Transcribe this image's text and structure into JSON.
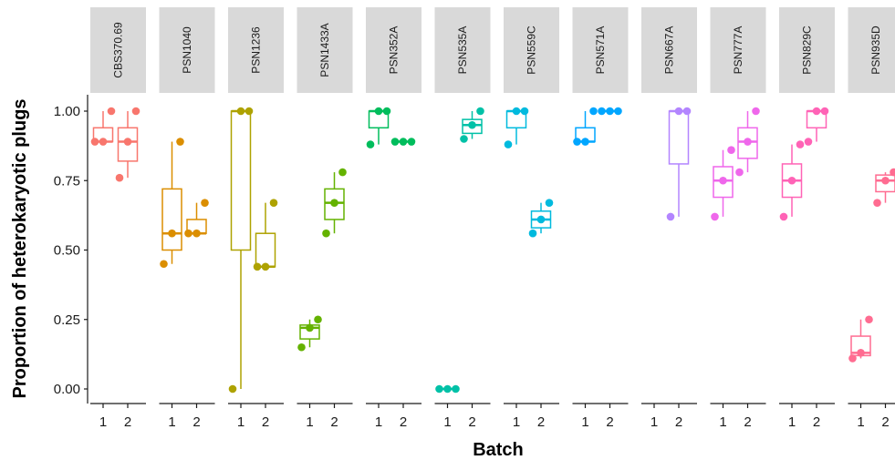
{
  "chart_data": {
    "type": "boxplot",
    "xlabel": "Batch",
    "ylabel": "Proportion of heterokaryotic plugs",
    "ylim": [
      0,
      1
    ],
    "yticks": [
      "0.00",
      "0.25",
      "0.50",
      "0.75",
      "1.00"
    ],
    "batches": [
      "1",
      "2"
    ],
    "facets": [
      {
        "name": "CBS370.69",
        "color": "#F8766D",
        "groups": [
          {
            "batch": "1",
            "min": 0.89,
            "q1": 0.89,
            "median": 0.89,
            "q3": 0.94,
            "max": 1.0,
            "points": [
              0.89,
              0.89,
              1.0
            ]
          },
          {
            "batch": "2",
            "min": 0.76,
            "q1": 0.82,
            "median": 0.89,
            "q3": 0.94,
            "max": 1.0,
            "points": [
              0.76,
              0.89,
              1.0
            ]
          }
        ]
      },
      {
        "name": "PSN1040",
        "color": "#DB8E00",
        "groups": [
          {
            "batch": "1",
            "min": 0.45,
            "q1": 0.5,
            "median": 0.56,
            "q3": 0.72,
            "max": 0.89,
            "points": [
              0.45,
              0.56,
              0.89
            ]
          },
          {
            "batch": "2",
            "min": 0.56,
            "q1": 0.56,
            "median": 0.56,
            "q3": 0.61,
            "max": 0.67,
            "points": [
              0.56,
              0.56,
              0.67
            ]
          }
        ]
      },
      {
        "name": "PSN1236",
        "color": "#AEA200",
        "groups": [
          {
            "batch": "1",
            "min": 0.0,
            "q1": 0.5,
            "median": 1.0,
            "q3": 1.0,
            "max": 1.0,
            "points": [
              0.0,
              1.0,
              1.0
            ]
          },
          {
            "batch": "2",
            "min": 0.44,
            "q1": 0.44,
            "median": 0.44,
            "q3": 0.56,
            "max": 0.67,
            "points": [
              0.44,
              0.44,
              0.67
            ]
          }
        ]
      },
      {
        "name": "PSN1433A",
        "color": "#64B200",
        "groups": [
          {
            "batch": "1",
            "min": 0.15,
            "q1": 0.18,
            "median": 0.22,
            "q3": 0.23,
            "max": 0.25,
            "points": [
              0.15,
              0.22,
              0.25
            ]
          },
          {
            "batch": "2",
            "min": 0.56,
            "q1": 0.61,
            "median": 0.67,
            "q3": 0.72,
            "max": 0.78,
            "points": [
              0.56,
              0.67,
              0.78
            ]
          }
        ]
      },
      {
        "name": "PSN352A",
        "color": "#00BD5C",
        "groups": [
          {
            "batch": "1",
            "min": 0.88,
            "q1": 0.94,
            "median": 1.0,
            "q3": 1.0,
            "max": 1.0,
            "points": [
              0.88,
              1.0,
              1.0
            ]
          },
          {
            "batch": "2",
            "min": 0.89,
            "q1": 0.89,
            "median": 0.89,
            "q3": 0.89,
            "max": 0.89,
            "points": [
              0.89,
              0.89,
              0.89
            ]
          }
        ]
      },
      {
        "name": "PSN535A",
        "color": "#00C1A7",
        "groups": [
          {
            "batch": "1",
            "min": 0.0,
            "q1": 0.0,
            "median": 0.0,
            "q3": 0.0,
            "max": 0.0,
            "points": [
              0.0,
              0.0,
              0.0
            ]
          },
          {
            "batch": "2",
            "min": 0.9,
            "q1": 0.92,
            "median": 0.95,
            "q3": 0.97,
            "max": 1.0,
            "points": [
              0.9,
              0.95,
              1.0
            ]
          }
        ]
      },
      {
        "name": "PSN559C",
        "color": "#00BADE",
        "groups": [
          {
            "batch": "1",
            "min": 0.88,
            "q1": 0.94,
            "median": 1.0,
            "q3": 1.0,
            "max": 1.0,
            "points": [
              0.88,
              1.0,
              1.0
            ]
          },
          {
            "batch": "2",
            "min": 0.56,
            "q1": 0.58,
            "median": 0.61,
            "q3": 0.64,
            "max": 0.67,
            "points": [
              0.56,
              0.61,
              0.67
            ]
          }
        ]
      },
      {
        "name": "PSN571A",
        "color": "#00A6FF",
        "groups": [
          {
            "batch": "1",
            "min": 0.89,
            "q1": 0.89,
            "median": 0.89,
            "q3": 0.94,
            "max": 1.0,
            "points": [
              0.89,
              0.89,
              1.0
            ]
          },
          {
            "batch": "2",
            "min": 1.0,
            "q1": 1.0,
            "median": 1.0,
            "q3": 1.0,
            "max": 1.0,
            "points": [
              1.0,
              1.0,
              1.0
            ]
          }
        ]
      },
      {
        "name": "PSN667A",
        "color": "#B385FF",
        "groups": [
          {
            "batch": "2",
            "min": 0.62,
            "q1": 0.81,
            "median": 1.0,
            "q3": 1.0,
            "max": 1.0,
            "points": [
              0.62,
              1.0,
              1.0
            ]
          }
        ]
      },
      {
        "name": "PSN777A",
        "color": "#EF67EB",
        "groups": [
          {
            "batch": "1",
            "min": 0.62,
            "q1": 0.69,
            "median": 0.75,
            "q3": 0.8,
            "max": 0.86,
            "points": [
              0.62,
              0.75,
              0.86
            ]
          },
          {
            "batch": "2",
            "min": 0.78,
            "q1": 0.83,
            "median": 0.89,
            "q3": 0.94,
            "max": 1.0,
            "points": [
              0.78,
              0.89,
              1.0
            ]
          }
        ]
      },
      {
        "name": "PSN829C",
        "color": "#FF63B6",
        "groups": [
          {
            "batch": "1",
            "min": 0.62,
            "q1": 0.69,
            "median": 0.75,
            "q3": 0.81,
            "max": 0.88,
            "points": [
              0.62,
              0.75,
              0.88
            ]
          },
          {
            "batch": "2",
            "min": 0.89,
            "q1": 0.94,
            "median": 1.0,
            "q3": 1.0,
            "max": 1.0,
            "points": [
              0.89,
              1.0,
              1.0
            ]
          }
        ]
      },
      {
        "name": "PSN935D",
        "color": "#FF6C91",
        "groups": [
          {
            "batch": "1",
            "min": 0.11,
            "q1": 0.12,
            "median": 0.13,
            "q3": 0.19,
            "max": 0.25,
            "points": [
              0.11,
              0.13,
              0.25
            ]
          },
          {
            "batch": "2",
            "min": 0.67,
            "q1": 0.71,
            "median": 0.75,
            "q3": 0.77,
            "max": 0.78,
            "points": [
              0.67,
              0.75,
              0.78
            ]
          }
        ]
      }
    ]
  }
}
